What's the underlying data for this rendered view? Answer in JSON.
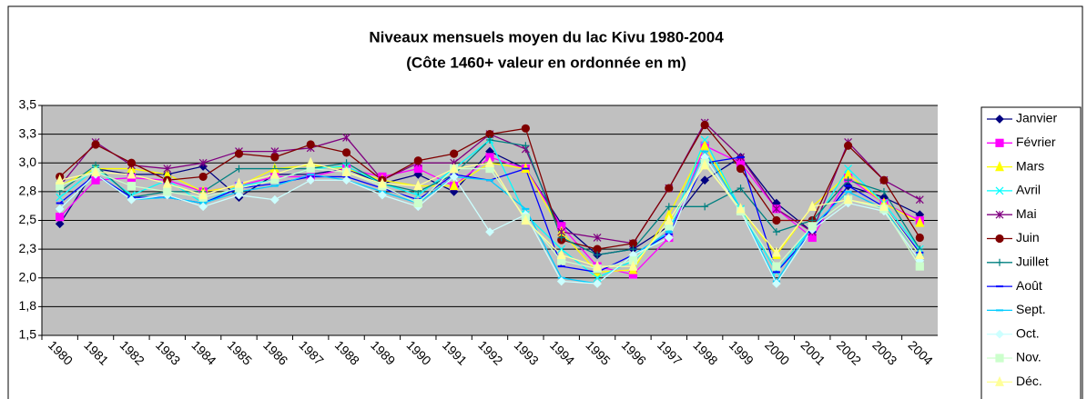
{
  "chart_data": {
    "type": "line",
    "title": "Niveaux mensuels moyen du lac Kivu 1980-2004",
    "subtitle": "(Côte 1460+ valeur en ordonnée en m)",
    "categories": [
      "1980",
      "1981",
      "1982",
      "1983",
      "1984",
      "1985",
      "1986",
      "1987",
      "1988",
      "1989",
      "1990",
      "1991",
      "1992",
      "1993",
      "1994",
      "1995",
      "1996",
      "1997",
      "1998",
      "1999",
      "2000",
      "2001",
      "2002",
      "2003",
      "2004"
    ],
    "ylim": [
      1.5,
      3.5
    ],
    "yticks": [
      {
        "value": 1.5,
        "label": "1,5"
      },
      {
        "value": 1.75,
        "label": "1,8"
      },
      {
        "value": 2.0,
        "label": "2,0"
      },
      {
        "value": 2.25,
        "label": "2,3"
      },
      {
        "value": 2.5,
        "label": "2,5"
      },
      {
        "value": 2.75,
        "label": "2,8"
      },
      {
        "value": 3.0,
        "label": "3,0"
      },
      {
        "value": 3.25,
        "label": "3,3"
      },
      {
        "value": 3.5,
        "label": "3,5"
      }
    ],
    "grid": true,
    "legend": "right",
    "series": [
      {
        "name": "Janvier",
        "color": "#000080",
        "marker": "diamond",
        "values": [
          2.47,
          2.95,
          2.9,
          2.9,
          2.97,
          2.7,
          2.9,
          2.9,
          2.95,
          2.82,
          2.9,
          2.75,
          3.1,
          2.95,
          2.47,
          2.2,
          2.25,
          2.45,
          2.85,
          3.05,
          2.65,
          2.4,
          2.8,
          2.7,
          2.55
        ]
      },
      {
        "name": "Février",
        "color": "#ff00ff",
        "marker": "square",
        "values": [
          2.53,
          2.85,
          2.87,
          2.85,
          2.75,
          2.8,
          2.88,
          2.88,
          2.95,
          2.88,
          2.95,
          2.8,
          3.05,
          2.95,
          2.45,
          2.1,
          2.03,
          2.35,
          3.15,
          3.0,
          2.6,
          2.35,
          2.87,
          2.65,
          2.5
        ]
      },
      {
        "name": "Mars",
        "color": "#ffff00",
        "marker": "triangle",
        "values": [
          2.8,
          2.95,
          2.95,
          2.9,
          2.75,
          2.8,
          2.95,
          2.98,
          2.95,
          2.85,
          2.8,
          2.8,
          3.0,
          2.95,
          2.4,
          2.05,
          2.07,
          2.55,
          3.15,
          2.6,
          2.2,
          2.62,
          2.9,
          2.65,
          2.48
        ]
      },
      {
        "name": "Avril",
        "color": "#00ffff",
        "marker": "x",
        "values": [
          2.7,
          2.95,
          2.72,
          2.85,
          2.65,
          2.8,
          2.85,
          2.95,
          2.97,
          2.82,
          2.72,
          2.95,
          3.2,
          2.55,
          2.25,
          2.0,
          2.15,
          2.4,
          3.2,
          2.6,
          2.05,
          2.45,
          2.95,
          2.65,
          2.25
        ]
      },
      {
        "name": "Mai",
        "color": "#800080",
        "marker": "star",
        "values": [
          2.8,
          3.18,
          2.98,
          2.95,
          3.0,
          3.1,
          3.1,
          3.13,
          3.22,
          2.85,
          3.0,
          3.0,
          3.25,
          3.12,
          2.4,
          2.35,
          2.3,
          2.78,
          3.35,
          3.05,
          2.6,
          2.4,
          3.18,
          2.85,
          2.68
        ]
      },
      {
        "name": "Juin",
        "color": "#800000",
        "marker": "circle",
        "values": [
          2.88,
          3.16,
          3.0,
          2.85,
          2.88,
          3.08,
          3.05,
          3.16,
          3.09,
          2.85,
          3.02,
          3.08,
          3.25,
          3.3,
          2.33,
          2.25,
          2.3,
          2.78,
          3.33,
          2.95,
          2.5,
          2.5,
          3.15,
          2.85,
          2.35
        ]
      },
      {
        "name": "Juillet",
        "color": "#008080",
        "marker": "plus",
        "values": [
          2.75,
          2.98,
          2.7,
          2.75,
          2.75,
          2.95,
          2.95,
          2.95,
          3.0,
          2.82,
          2.75,
          2.9,
          3.2,
          3.15,
          2.35,
          2.2,
          2.25,
          2.62,
          2.62,
          2.78,
          2.4,
          2.5,
          2.85,
          2.75,
          2.25
        ]
      },
      {
        "name": "Août",
        "color": "#0000ff",
        "marker": "dash",
        "values": [
          2.65,
          2.9,
          2.7,
          2.7,
          2.65,
          2.78,
          2.82,
          2.88,
          2.88,
          2.78,
          2.68,
          2.9,
          2.85,
          2.95,
          2.1,
          2.05,
          2.2,
          2.38,
          3.0,
          3.05,
          2.05,
          2.4,
          2.8,
          2.62,
          2.22
        ]
      },
      {
        "name": "Sept.",
        "color": "#00ccff",
        "marker": "dash",
        "values": [
          2.6,
          2.9,
          2.68,
          2.7,
          2.65,
          2.75,
          2.8,
          2.9,
          2.85,
          2.75,
          2.65,
          2.88,
          2.85,
          2.6,
          2.0,
          1.95,
          2.2,
          2.4,
          3.1,
          2.6,
          1.97,
          2.45,
          2.75,
          2.6,
          2.2
        ]
      },
      {
        "name": "Oct.",
        "color": "#ccffff",
        "marker": "diamond",
        "values": [
          2.6,
          2.9,
          2.68,
          2.72,
          2.62,
          2.72,
          2.68,
          2.85,
          2.85,
          2.72,
          2.62,
          2.88,
          2.4,
          2.55,
          1.97,
          1.95,
          2.2,
          2.35,
          3.05,
          2.58,
          1.95,
          2.42,
          2.65,
          2.58,
          2.15
        ]
      },
      {
        "name": "Nov.",
        "color": "#ccffcc",
        "marker": "square",
        "values": [
          2.8,
          2.92,
          2.8,
          2.75,
          2.7,
          2.78,
          2.85,
          2.95,
          2.92,
          2.8,
          2.65,
          2.95,
          2.95,
          2.52,
          2.15,
          2.08,
          2.15,
          2.45,
          3.0,
          2.58,
          2.1,
          2.45,
          2.68,
          2.6,
          2.1
        ]
      },
      {
        "name": "Déc.",
        "color": "#ffff99",
        "marker": "triangle",
        "values": [
          2.85,
          2.92,
          2.9,
          2.82,
          2.72,
          2.82,
          2.9,
          3.0,
          2.92,
          2.82,
          2.8,
          2.95,
          3.0,
          2.5,
          2.2,
          2.1,
          2.1,
          2.5,
          2.98,
          2.6,
          2.22,
          2.62,
          2.68,
          2.62,
          2.2
        ]
      }
    ]
  }
}
